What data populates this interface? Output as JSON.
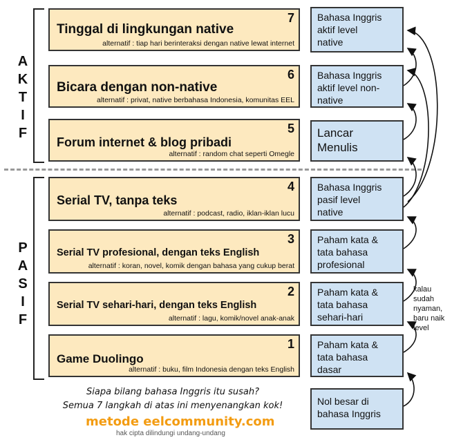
{
  "sections": {
    "aktif": [
      "A",
      "K",
      "T",
      "I",
      "F"
    ],
    "pasif": [
      "P",
      "A",
      "S",
      "I",
      "F"
    ]
  },
  "steps": [
    {
      "number": "7",
      "title": "Tinggal di lingkungan native",
      "alt": "alternatif : tiap hari berinteraksi dengan native lewat internet"
    },
    {
      "number": "6",
      "title": "Bicara dengan non-native",
      "alt": "alternatif : privat, native berbahasa Indonesia, komunitas EEL"
    },
    {
      "number": "5",
      "title": "Forum internet & blog pribadi",
      "alt": "alternatif : random chat seperti Omegle"
    },
    {
      "number": "4",
      "title": "Serial TV, tanpa teks",
      "alt": "alternatif : podcast, radio, iklan-iklan lucu"
    },
    {
      "number": "3",
      "title": "Serial TV profesional, dengan teks English",
      "alt": "alternatif : koran, novel, komik dengan bahasa yang cukup berat"
    },
    {
      "number": "2",
      "title": "Serial TV sehari-hari, dengan teks English",
      "alt": "alternatif : lagu, komik/novel anak-anak"
    },
    {
      "number": "1",
      "title": "Game Duolingo",
      "alt": "alternatif : buku, film Indonesia dengan teks English"
    }
  ],
  "results": [
    [
      "Bahasa Inggris",
      "aktif level",
      "native"
    ],
    [
      "Bahasa Inggris",
      "aktif level non-",
      "native"
    ],
    [
      "Lancar",
      "Menulis"
    ],
    [
      "Bahasa Inggris",
      "pasif level",
      "native"
    ],
    [
      "Paham kata &",
      "tata bahasa",
      "profesional"
    ],
    [
      "Paham kata &",
      "tata bahasa",
      "sehari-hari"
    ],
    [
      "Paham kata &",
      "tata bahasa",
      "dasar"
    ],
    [
      "Nol besar di",
      "bahasa Inggris"
    ]
  ],
  "note": [
    "kalau",
    "sudah",
    "nyaman,",
    "baru naik",
    "level"
  ],
  "footer": {
    "slogan_1": "Siapa bilang bahasa Inggris itu susah?",
    "slogan_2": "Semua 7 langkah di atas ini menyenangkan kok!",
    "brand": "metode eelcommunity.com",
    "copyright": "hak cipta dilindungi undang-undang"
  },
  "colors": {
    "step_fill": "#fde9bf",
    "result_fill": "#cfe2f3",
    "brand": "#f39c12",
    "divider": "#999999"
  }
}
